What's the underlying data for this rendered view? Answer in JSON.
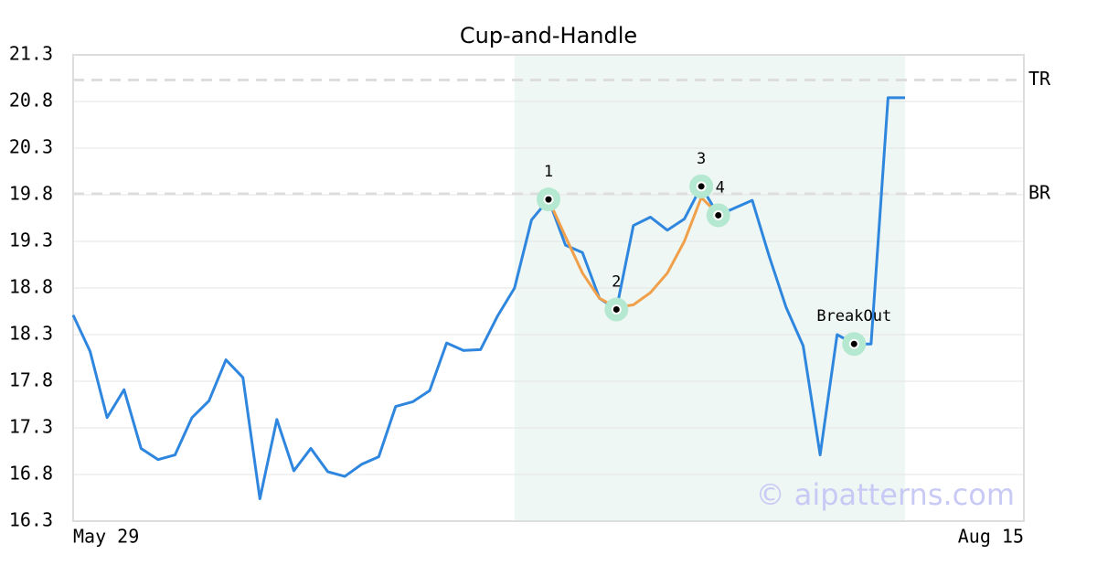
{
  "chart_data": {
    "type": "line",
    "title": "Cup-and-Handle",
    "x": [
      0,
      1,
      2,
      3,
      4,
      5,
      6,
      7,
      8,
      9,
      10,
      11,
      12,
      13,
      14,
      15,
      16,
      17,
      18,
      19,
      20,
      21,
      22,
      23,
      24,
      25,
      26,
      27,
      28,
      29,
      30,
      31,
      32,
      33,
      34,
      35,
      36,
      37,
      38,
      39,
      40,
      41,
      42,
      43,
      44,
      45,
      46,
      47,
      48,
      49
    ],
    "values": [
      18.51,
      18.12,
      17.41,
      17.71,
      17.08,
      16.96,
      17.01,
      17.41,
      17.59,
      18.03,
      17.84,
      16.54,
      17.39,
      16.84,
      17.08,
      16.83,
      16.78,
      16.91,
      16.99,
      17.53,
      17.58,
      17.7,
      18.21,
      18.13,
      18.14,
      18.5,
      18.8,
      19.53,
      19.75,
      19.26,
      19.18,
      18.69,
      18.57,
      19.47,
      19.56,
      19.42,
      19.54,
      19.89,
      19.58,
      19.66,
      19.74,
      19.14,
      18.59,
      18.18,
      17.01,
      18.3,
      18.2,
      18.2,
      20.84,
      20.84
    ],
    "color": "#2e86de",
    "pattern": {
      "x": [
        28,
        29,
        30,
        31,
        32,
        33,
        34,
        35,
        36,
        37,
        38
      ],
      "values": [
        19.75,
        19.35,
        18.96,
        18.69,
        18.59,
        18.62,
        18.75,
        18.96,
        19.3,
        19.77,
        19.59
      ],
      "color": "#f0a04b"
    },
    "points": [
      {
        "label": "1",
        "x": 28,
        "value": 19.75
      },
      {
        "label": "2",
        "x": 32,
        "value": 18.57
      },
      {
        "label": "3",
        "x": 37,
        "value": 19.89
      },
      {
        "label": "4",
        "x": 38,
        "value": 19.58
      },
      {
        "label": "BreakOut",
        "x": 46,
        "value": 18.2
      }
    ],
    "levels": [
      {
        "label": "TR",
        "value": 21.03
      },
      {
        "label": "BR",
        "value": 19.81
      }
    ],
    "highlight_range": [
      26,
      49
    ],
    "xlim": [
      0,
      56
    ],
    "xticks": [
      {
        "value": 0,
        "label": "May 29"
      },
      {
        "value": 56,
        "label": "Aug 15"
      }
    ],
    "ylim": [
      16.3,
      21.3
    ],
    "yticks": [
      16.3,
      16.8,
      17.3,
      17.8,
      18.3,
      18.8,
      19.3,
      19.8,
      20.3,
      20.8,
      21.3
    ],
    "grid": true,
    "watermark": "© aipatterns.com"
  }
}
